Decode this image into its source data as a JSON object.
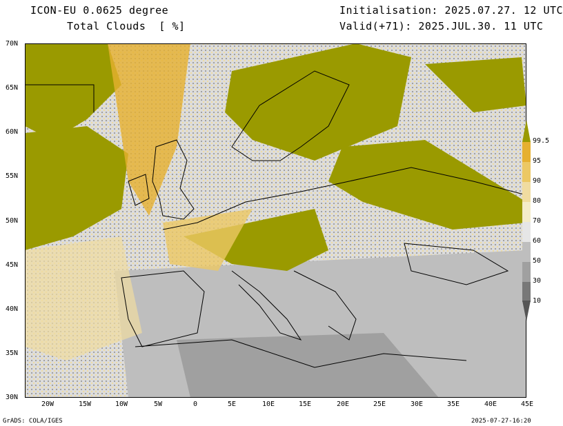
{
  "header": {
    "model": "ICON-EU 0.0625 degree",
    "field": "Total Clouds  [ %]",
    "init": "Initialisation: 2025.07.27. 12 UTC",
    "valid": "Valid(+71): 2025.JUL.30. 11 UTC"
  },
  "lat_labels": [
    "70N",
    "65N",
    "60N",
    "55N",
    "50N",
    "45N",
    "40N",
    "35N",
    "30N"
  ],
  "lon_labels": [
    "20W",
    "15W",
    "10W",
    "5W",
    "0",
    "5E",
    "10E",
    "15E",
    "20E",
    "25E",
    "30E",
    "35E",
    "40E",
    "45E"
  ],
  "colorbar": {
    "labels": [
      "99.5",
      "95",
      "90",
      "80",
      "70",
      "60",
      "50",
      "30",
      "10"
    ],
    "colors": [
      "#9a9a00",
      "#e6b030",
      "#ecc864",
      "#f0dca0",
      "#f4ecc8",
      "#e6e6e6",
      "#bebebe",
      "#a0a0a0",
      "#787878",
      "#555555"
    ]
  },
  "footer": {
    "left": "GrADS: COLA/IGES",
    "right": "2025-07-27-16:20"
  }
}
